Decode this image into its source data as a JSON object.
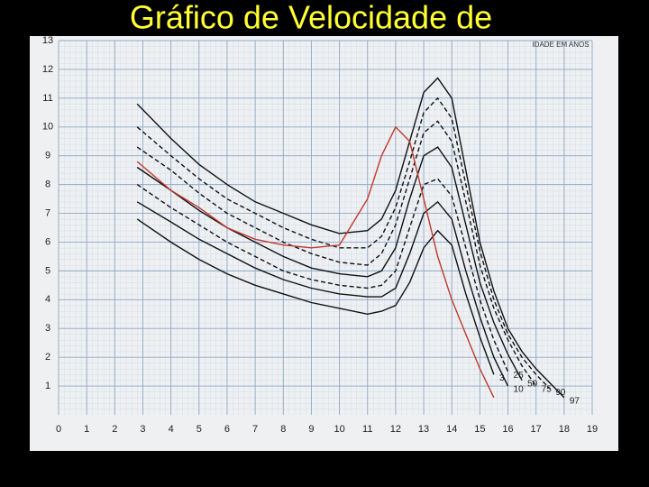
{
  "chart_data": {
    "type": "line",
    "title": "Gráfico de Velocidade de",
    "annotation": "IDADE EM ANOS",
    "x": [
      2.8,
      4,
      5,
      6,
      7,
      8,
      9,
      10,
      11,
      11.5,
      12,
      12.5,
      13,
      13.5,
      14,
      14.5,
      15,
      15.5,
      16,
      16.5,
      17,
      17.5,
      18,
      18.5
    ],
    "series": [
      {
        "name": "97",
        "color": "#111111",
        "dashed": false,
        "values": [
          10.8,
          9.6,
          8.7,
          8.0,
          7.4,
          7.0,
          6.6,
          6.3,
          6.4,
          6.8,
          7.8,
          9.5,
          11.2,
          11.7,
          11.0,
          8.5,
          6.0,
          4.3,
          3.0,
          2.2,
          1.6,
          1.1,
          0.6,
          null
        ]
      },
      {
        "name": "90",
        "color": "#111111",
        "dashed": true,
        "values": [
          10.0,
          9.0,
          8.2,
          7.5,
          7.0,
          6.5,
          6.1,
          5.8,
          5.8,
          6.2,
          7.2,
          8.8,
          10.5,
          11.0,
          10.3,
          8.0,
          5.7,
          4.0,
          2.8,
          2.0,
          1.4,
          0.9,
          null,
          null
        ]
      },
      {
        "name": "75",
        "color": "#111111",
        "dashed": true,
        "values": [
          9.3,
          8.5,
          7.7,
          7.0,
          6.5,
          6.0,
          5.6,
          5.3,
          5.2,
          5.6,
          6.6,
          8.2,
          9.8,
          10.2,
          9.5,
          7.4,
          5.2,
          3.7,
          2.6,
          1.7,
          1.0,
          null,
          null,
          null
        ]
      },
      {
        "name": "50",
        "color": "#111111",
        "dashed": false,
        "values": [
          8.6,
          7.8,
          7.1,
          6.5,
          6.0,
          5.5,
          5.1,
          4.9,
          4.8,
          5.0,
          5.8,
          7.5,
          9.0,
          9.3,
          8.6,
          6.6,
          4.6,
          3.2,
          2.1,
          1.2,
          null,
          null,
          null,
          null
        ]
      },
      {
        "name": "25",
        "color": "#111111",
        "dashed": true,
        "values": [
          8.0,
          7.2,
          6.6,
          6.0,
          5.5,
          5.0,
          4.7,
          4.5,
          4.4,
          4.5,
          5.0,
          6.5,
          8.0,
          8.2,
          7.6,
          5.8,
          4.0,
          2.6,
          1.5,
          null,
          null,
          null,
          null,
          null
        ]
      },
      {
        "name": "10",
        "color": "#111111",
        "dashed": false,
        "values": [
          7.4,
          6.7,
          6.1,
          5.6,
          5.1,
          4.7,
          4.4,
          4.2,
          4.1,
          4.1,
          4.4,
          5.6,
          7.0,
          7.4,
          6.8,
          5.0,
          3.4,
          2.0,
          1.0,
          null,
          null,
          null,
          null,
          null
        ]
      },
      {
        "name": "3",
        "color": "#111111",
        "dashed": false,
        "values": [
          6.8,
          6.0,
          5.4,
          4.9,
          4.5,
          4.2,
          3.9,
          3.7,
          3.5,
          3.6,
          3.8,
          4.6,
          5.8,
          6.4,
          5.9,
          4.2,
          2.7,
          1.4,
          null,
          null,
          null,
          null,
          null,
          null
        ]
      },
      {
        "color": "#c0392b",
        "dashed": false,
        "values": [
          8.8,
          7.8,
          7.2,
          6.5,
          6.1,
          5.9,
          5.8,
          5.9,
          7.5,
          9.0,
          10.0,
          9.5,
          7.5,
          5.5,
          4.0,
          2.8,
          1.6,
          0.6,
          null,
          null,
          null,
          null,
          null,
          null
        ]
      }
    ],
    "xlim": [
      0,
      19
    ],
    "ylim": [
      0,
      13
    ],
    "xticks": [
      0,
      1,
      2,
      3,
      4,
      5,
      6,
      7,
      8,
      9,
      10,
      11,
      12,
      13,
      14,
      15,
      16,
      17,
      18,
      19
    ],
    "yticks": [
      1,
      2,
      3,
      4,
      5,
      6,
      7,
      8,
      9,
      10,
      11,
      12,
      13
    ],
    "grid": true
  }
}
